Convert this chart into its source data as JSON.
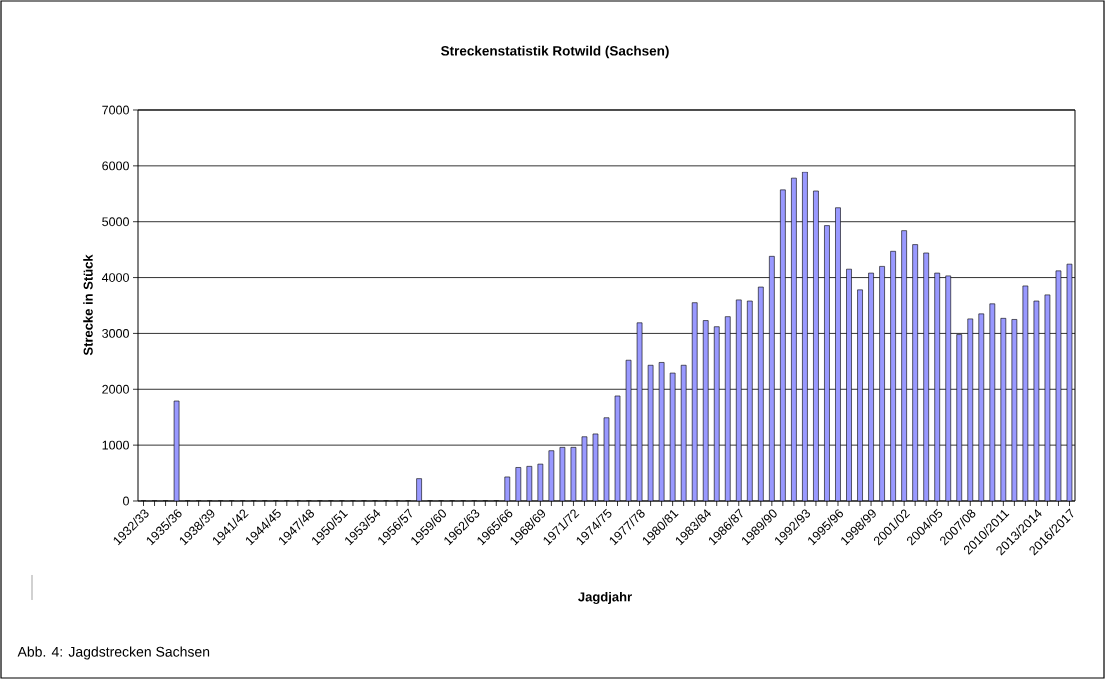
{
  "chart_data": {
    "type": "bar",
    "title": "Streckenstatistik Rotwild (Sachsen)",
    "xlabel": "Jagdjahr",
    "ylabel": "Strecke in Stück",
    "categories": [
      "1932/33",
      null,
      null,
      "1935/36",
      null,
      null,
      "1938/39",
      null,
      null,
      "1941/42",
      null,
      null,
      "1944/45",
      null,
      null,
      "1947/48",
      null,
      null,
      "1950/51",
      null,
      null,
      "1953/54",
      null,
      null,
      "1956/57",
      null,
      null,
      "1959/60",
      null,
      null,
      "1962/63",
      null,
      null,
      "1965/66",
      null,
      null,
      "1968/69",
      null,
      null,
      "1971/72",
      null,
      null,
      "1974/75",
      null,
      null,
      "1977/78",
      null,
      null,
      "1980/81",
      null,
      null,
      "1983/84",
      null,
      null,
      "1986/87",
      null,
      null,
      "1989/90",
      null,
      null,
      "1992/93",
      null,
      null,
      "1995/96",
      null,
      null,
      "1998/99",
      null,
      null,
      "2001/02",
      null,
      null,
      "2004/05",
      null,
      null,
      "2007/08",
      null,
      null,
      "2010/2011",
      null,
      null,
      "2013/2014",
      null,
      null,
      "2016/2017"
    ],
    "values": [
      0,
      0,
      0,
      1790,
      0,
      0,
      0,
      0,
      0,
      0,
      0,
      0,
      0,
      0,
      0,
      0,
      0,
      0,
      0,
      0,
      0,
      0,
      0,
      0,
      0,
      400,
      0,
      0,
      0,
      0,
      0,
      0,
      0,
      430,
      600,
      620,
      660,
      900,
      960,
      960,
      1150,
      1200,
      1490,
      1880,
      2520,
      3190,
      2430,
      2480,
      2290,
      2430,
      3550,
      3230,
      3120,
      3300,
      3600,
      3580,
      3830,
      4380,
      5570,
      5780,
      5890,
      5550,
      4930,
      5250,
      4150,
      3780,
      4080,
      4200,
      4470,
      4840,
      4590,
      4440,
      4080,
      4030,
      2980,
      3260,
      3350,
      3530,
      3270,
      3250,
      3850,
      3580,
      3690,
      4120,
      4240
    ],
    "color": "#9999ff",
    "ylim": [
      0,
      7000
    ],
    "yticks": [
      0,
      1000,
      2000,
      3000,
      4000,
      5000,
      6000,
      7000
    ],
    "grid": "y",
    "annotations": [
      "Abb. 4: Jagdstrecken Sachsen"
    ]
  }
}
